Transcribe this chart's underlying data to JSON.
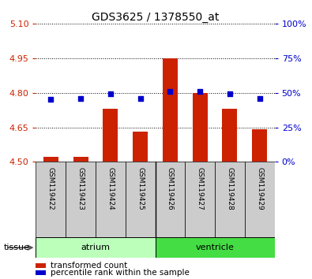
{
  "title": "GDS3625 / 1378550_at",
  "samples": [
    "GSM119422",
    "GSM119423",
    "GSM119424",
    "GSM119425",
    "GSM119426",
    "GSM119427",
    "GSM119428",
    "GSM119429"
  ],
  "transformed_count": [
    4.52,
    4.52,
    4.73,
    4.63,
    4.95,
    4.8,
    4.73,
    4.64
  ],
  "percentile_rank": [
    45,
    46,
    49,
    46,
    51,
    51,
    49,
    46
  ],
  "ylim_left": [
    4.5,
    5.1
  ],
  "ylim_right": [
    0,
    100
  ],
  "yticks_left": [
    4.5,
    4.65,
    4.8,
    4.95,
    5.1
  ],
  "yticks_right": [
    0,
    25,
    50,
    75,
    100
  ],
  "groups": [
    {
      "label": "atrium",
      "indices": [
        0,
        1,
        2,
        3
      ],
      "color": "#bbffbb"
    },
    {
      "label": "ventricle",
      "indices": [
        4,
        5,
        6,
        7
      ],
      "color": "#44dd44"
    }
  ],
  "bar_color": "#cc2200",
  "dot_color": "#0000cc",
  "bar_bottom": 4.5,
  "tick_color_left": "#cc2200",
  "tick_color_right": "#0000cc",
  "sample_bg_color": "#cccccc",
  "tissue_label": "tissue"
}
